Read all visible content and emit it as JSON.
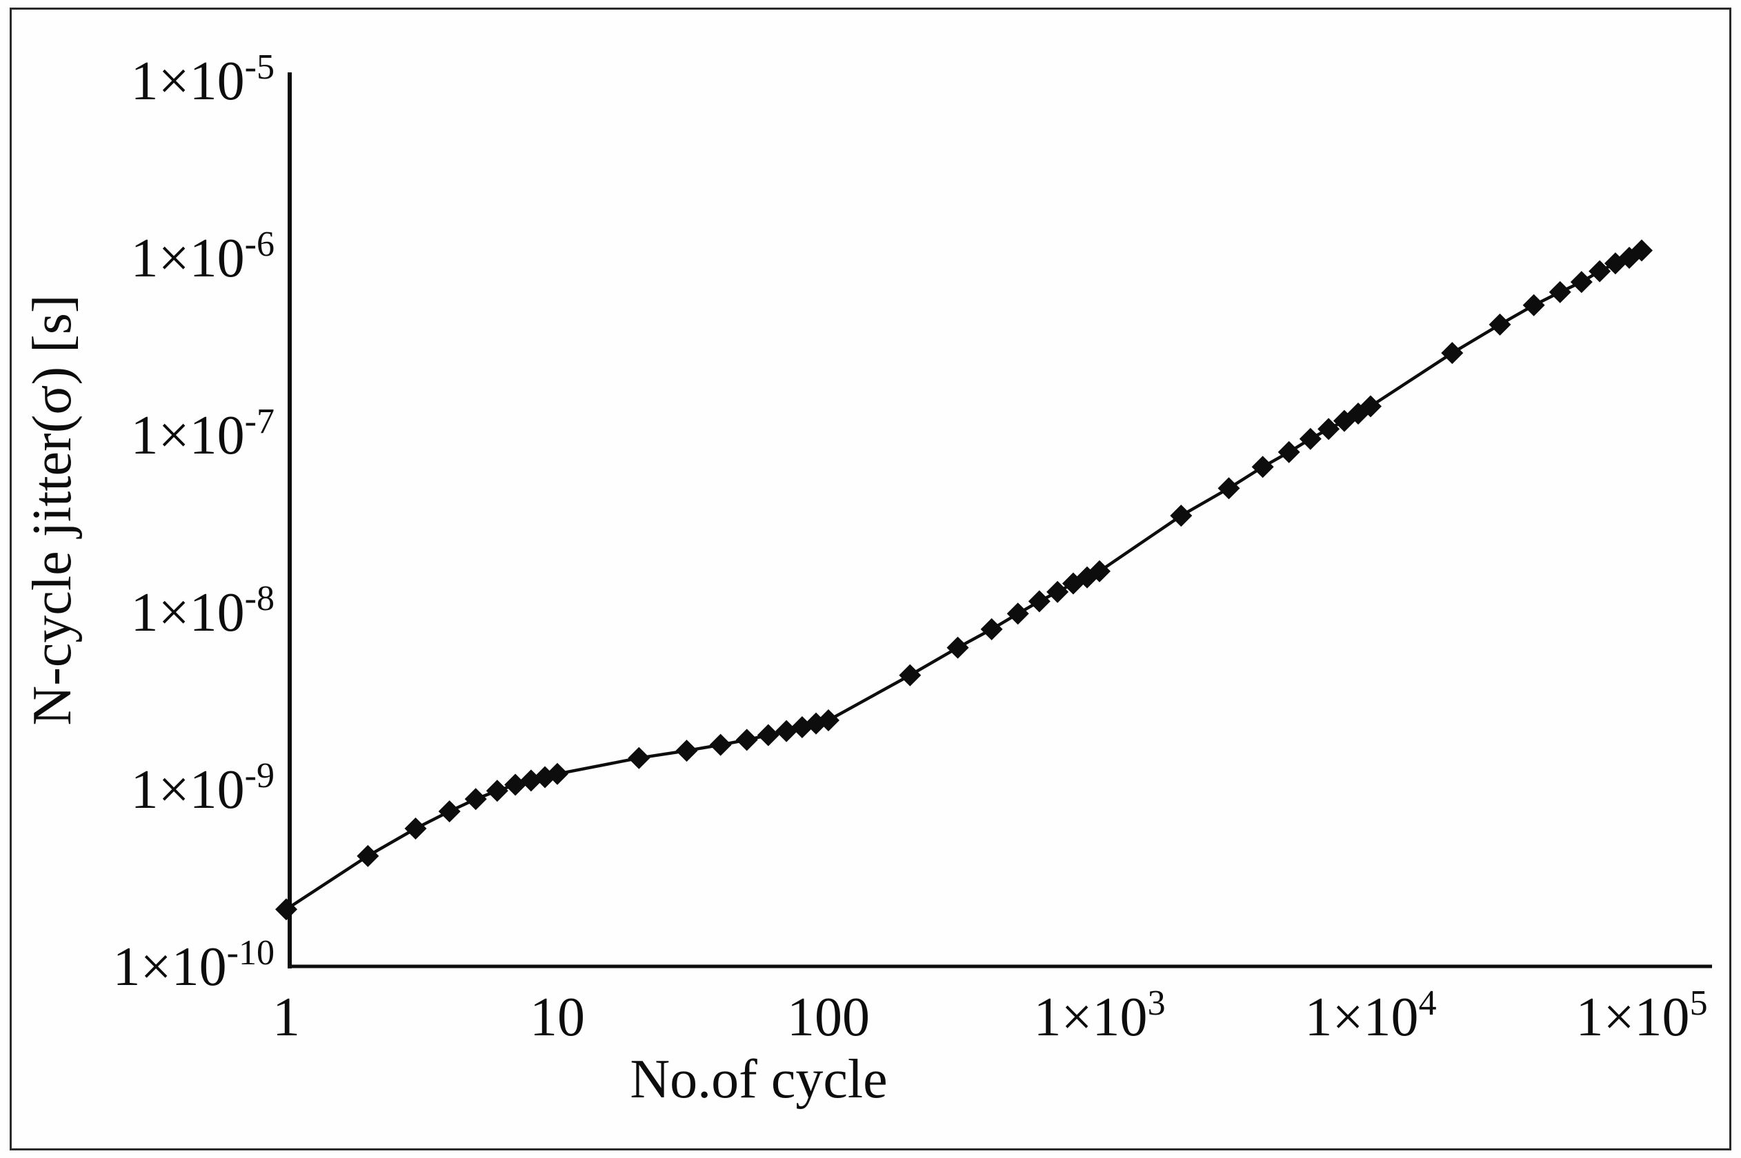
{
  "figure": {
    "background": "#fefefe",
    "frame_color": "#2a2a2a",
    "ink_color": "#0d0d0d"
  },
  "chart_data": {
    "type": "line",
    "title": "",
    "xlabel": "No.of cycle",
    "ylabel": "N-cycle jitter(σ) [s]",
    "x_scale": "log",
    "y_scale": "log",
    "xlim": [
      1,
      100000
    ],
    "ylim": [
      1e-10,
      1e-05
    ],
    "grid": false,
    "legend": false,
    "marker": "diamond",
    "marker_color": "#0d0d0d",
    "line_color": "#0d0d0d",
    "x_tick_values": [
      1,
      10,
      100,
      1000,
      10000,
      100000
    ],
    "x_tick_labels": [
      "1",
      "10",
      "100",
      "1×10^3",
      "1×10^4",
      "1×10^5"
    ],
    "y_tick_values": [
      1e-05,
      1e-06,
      1e-07,
      1e-08,
      1e-09,
      1e-10
    ],
    "y_tick_labels": [
      "1×10^-5",
      "1×10^-6",
      "1×10^-7",
      "1×10^-8",
      "1×10^-9",
      "1×10^-10"
    ],
    "series": [
      {
        "name": "N-cycle jitter",
        "x": [
          1,
          2,
          3,
          4,
          5,
          6,
          7,
          8,
          9,
          10,
          20,
          30,
          40,
          50,
          60,
          70,
          80,
          90,
          100,
          200,
          300,
          400,
          500,
          600,
          700,
          800,
          900,
          1000,
          2000,
          3000,
          4000,
          5000,
          6000,
          7000,
          8000,
          9000,
          10000,
          20000,
          30000,
          40000,
          50000,
          60000,
          70000,
          80000,
          90000,
          100000
        ],
        "y": [
          2.1e-10,
          4.2e-10,
          6e-10,
          7.5e-10,
          8.8e-10,
          9.8e-10,
          1.06e-09,
          1.12e-09,
          1.17e-09,
          1.22e-09,
          1.5e-09,
          1.65e-09,
          1.78e-09,
          1.9e-09,
          2.02e-09,
          2.13e-09,
          2.24e-09,
          2.35e-09,
          2.45e-09,
          4.4e-09,
          6.3e-09,
          8e-09,
          9.8e-09,
          1.15e-08,
          1.3e-08,
          1.45e-08,
          1.57e-08,
          1.7e-08,
          3.5e-08,
          5e-08,
          6.6e-08,
          8e-08,
          9.5e-08,
          1.08e-07,
          1.2e-07,
          1.32e-07,
          1.45e-07,
          2.9e-07,
          4.2e-07,
          5.4e-07,
          6.4e-07,
          7.3e-07,
          8.4e-07,
          9.3e-07,
          1e-06,
          1.1e-06
        ]
      }
    ]
  }
}
